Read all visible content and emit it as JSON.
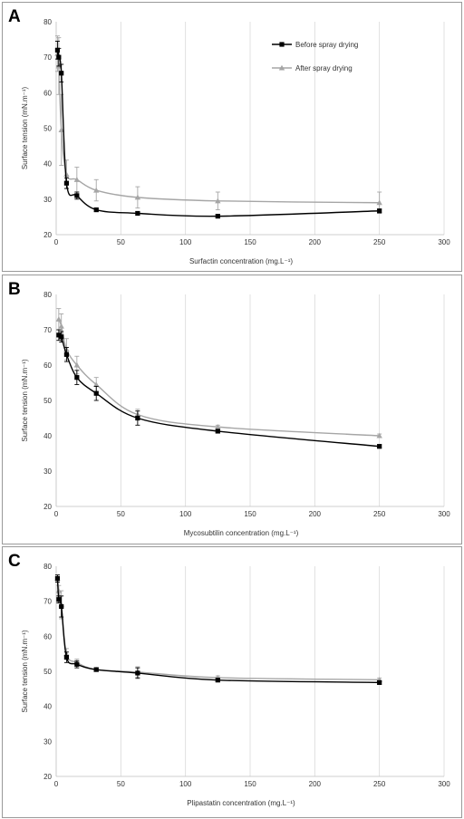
{
  "chart_data": [
    {
      "type": "line",
      "panel_label": "A",
      "title": "",
      "xlabel": "Surfactin concentration (mg.L⁻¹)",
      "ylabel": "Surface tension (mN.m⁻¹)",
      "xlim": [
        0,
        300
      ],
      "ylim": [
        20,
        80
      ],
      "x_ticks": [
        0,
        50,
        100,
        150,
        200,
        250,
        300
      ],
      "y_ticks": [
        20,
        30,
        40,
        50,
        60,
        70,
        80
      ],
      "grid": "vertical",
      "legend": "top-right",
      "series": [
        {
          "name": "Before spray drying",
          "color": "#000000",
          "marker": "square",
          "x": [
            1,
            2,
            4,
            8,
            16,
            31,
            63,
            125,
            250
          ],
          "y": [
            72,
            70,
            65.5,
            34.5,
            31,
            27,
            26,
            25.2,
            26.7
          ],
          "err": [
            2.5,
            2.5,
            2.5,
            1.5,
            1,
            0.5,
            0.5,
            0.5,
            0.5
          ]
        },
        {
          "name": "After spray drying",
          "color": "#a6a6a6",
          "marker": "triangle",
          "x": [
            1,
            2,
            4,
            8,
            16,
            31,
            63,
            125,
            250
          ],
          "y": [
            71,
            67.5,
            49.5,
            37,
            35.5,
            32.5,
            30.5,
            29.5,
            29
          ],
          "err": [
            5,
            8,
            10,
            4,
            3.5,
            3,
            3,
            2.5,
            3
          ]
        }
      ]
    },
    {
      "type": "line",
      "panel_label": "B",
      "title": "",
      "xlabel": "Mycosubtilin concentration (mg.L⁻¹)",
      "ylabel": "Surface tension (mN.m⁻¹)",
      "xlim": [
        0,
        300
      ],
      "ylim": [
        20,
        80
      ],
      "x_ticks": [
        0,
        50,
        100,
        150,
        200,
        250,
        300
      ],
      "y_ticks": [
        20,
        30,
        40,
        50,
        60,
        70,
        80
      ],
      "grid": "vertical",
      "legend": "none",
      "series": [
        {
          "name": "Before spray drying",
          "color": "#000000",
          "marker": "square",
          "x": [
            2,
            4,
            8,
            16,
            31,
            63,
            125,
            250
          ],
          "y": [
            68.5,
            68,
            63,
            56.5,
            52,
            45,
            41.3,
            37
          ],
          "err": [
            1.5,
            1.5,
            2,
            2,
            2,
            2,
            0.5,
            0.5
          ]
        },
        {
          "name": "After spray drying",
          "color": "#a6a6a6",
          "marker": "triangle",
          "x": [
            2,
            4,
            8,
            16,
            31,
            63,
            125,
            250
          ],
          "y": [
            73,
            71,
            64.5,
            60,
            54.5,
            46,
            42.5,
            40
          ],
          "err": [
            3,
            3.5,
            3,
            2.5,
            2,
            1.5,
            0.5,
            0.5
          ]
        }
      ]
    },
    {
      "type": "line",
      "panel_label": "C",
      "title": "",
      "xlabel": "Plipastatin concentration (mg.L⁻¹)",
      "ylabel": "Surface tension (mN.m⁻¹)",
      "xlim": [
        0,
        300
      ],
      "ylim": [
        20,
        80
      ],
      "x_ticks": [
        0,
        50,
        100,
        150,
        200,
        250,
        300
      ],
      "y_ticks": [
        20,
        30,
        40,
        50,
        60,
        70,
        80
      ],
      "grid": "vertical",
      "legend": "none",
      "series": [
        {
          "name": "Before spray drying",
          "color": "#000000",
          "marker": "square",
          "x": [
            1,
            2,
            4,
            8,
            16,
            31,
            63,
            125,
            250
          ],
          "y": [
            76.5,
            70.5,
            68.5,
            54,
            52,
            50.5,
            49.5,
            47.5,
            46.8
          ],
          "err": [
            1,
            1,
            3,
            1.5,
            1,
            0.5,
            1.5,
            0.5,
            0.5
          ]
        },
        {
          "name": "After spray drying",
          "color": "#a6a6a6",
          "marker": "triangle",
          "x": [
            1,
            2,
            4,
            8,
            16,
            31,
            63,
            125,
            250
          ],
          "y": [
            76.5,
            73,
            69,
            55,
            52.5,
            50.5,
            49.8,
            48.2,
            47.6
          ],
          "err": [
            1,
            1.5,
            4,
            1.5,
            1,
            0.5,
            1.5,
            0.5,
            0.5
          ]
        }
      ]
    }
  ]
}
